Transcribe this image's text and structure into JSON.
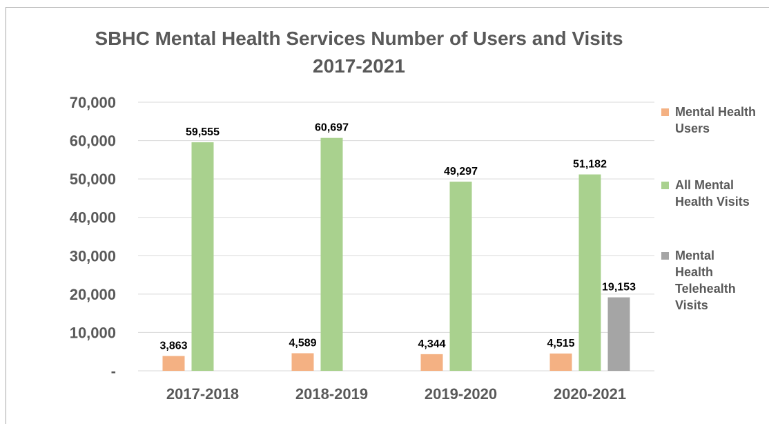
{
  "chart_data": {
    "type": "bar",
    "title_lines": [
      "SBHC Mental Health Services Number of Users and Visits",
      "2017-2021"
    ],
    "categories": [
      "2017-2018",
      "2018-2019",
      "2019-2020",
      "2020-2021"
    ],
    "series": [
      {
        "name": "Mental Health Users",
        "color": "#f4b183",
        "values": [
          3863,
          4589,
          4344,
          4515
        ],
        "labels": [
          "3,863",
          "4,589",
          "4,344",
          "4,515"
        ]
      },
      {
        "name": "All Mental Health Visits",
        "color": "#a9d18e",
        "values": [
          59555,
          60697,
          49297,
          51182
        ],
        "labels": [
          "59,555",
          "60,697",
          "49,297",
          "51,182"
        ]
      },
      {
        "name": "Mental Health Telehealth Visits",
        "color": "#a5a5a5",
        "values": [
          null,
          null,
          null,
          19153
        ],
        "labels": [
          "",
          "",
          "",
          "19,153"
        ]
      }
    ],
    "ylim": [
      0,
      70000
    ],
    "yticks": [
      0,
      10000,
      20000,
      30000,
      40000,
      50000,
      60000,
      70000
    ],
    "ytick_labels": [
      "-",
      "10,000",
      "20,000",
      "30,000",
      "40,000",
      "50,000",
      "60,000",
      "70,000"
    ],
    "grid": true,
    "legend_position": "right"
  }
}
